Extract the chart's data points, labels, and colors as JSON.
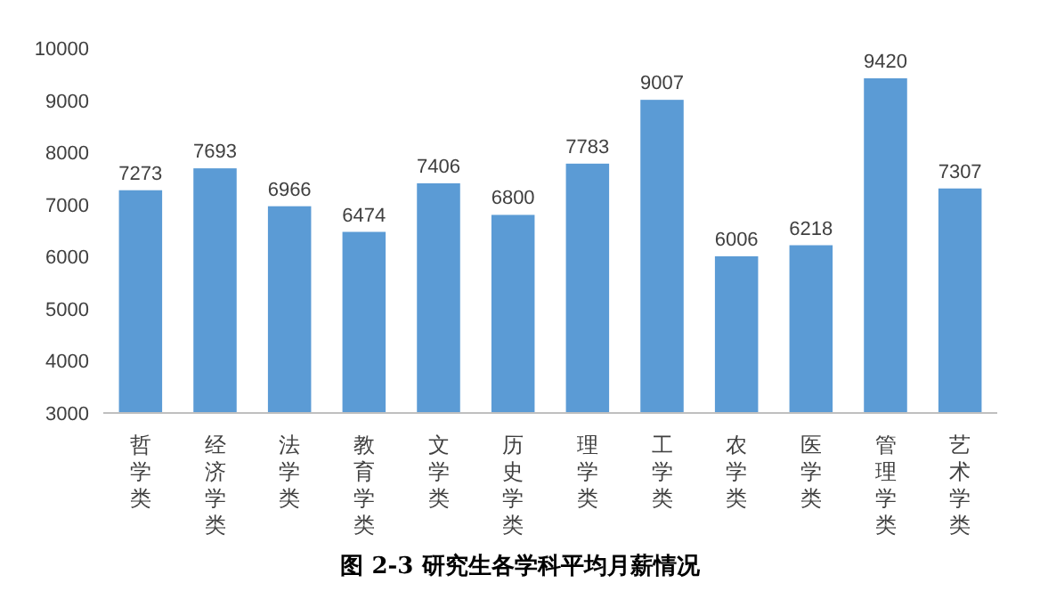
{
  "chart_data": {
    "type": "bar",
    "title": "图 2-3  研究生各学科平均月薪情况",
    "categories": [
      "哲学类",
      "经济学类",
      "法学类",
      "教育学类",
      "文学类",
      "历史学类",
      "理学类",
      "工学类",
      "农学类",
      "医学类",
      "管理学类",
      "艺术学类"
    ],
    "values": [
      7273,
      7693,
      6966,
      6474,
      7406,
      6800,
      7783,
      9007,
      6006,
      6218,
      9420,
      7307
    ],
    "color": "#5b9bd5",
    "ylim": [
      3000,
      10000
    ],
    "yticks": [
      3000,
      4000,
      5000,
      6000,
      7000,
      8000,
      9000,
      10000
    ],
    "data_labels": true,
    "grid": false
  }
}
